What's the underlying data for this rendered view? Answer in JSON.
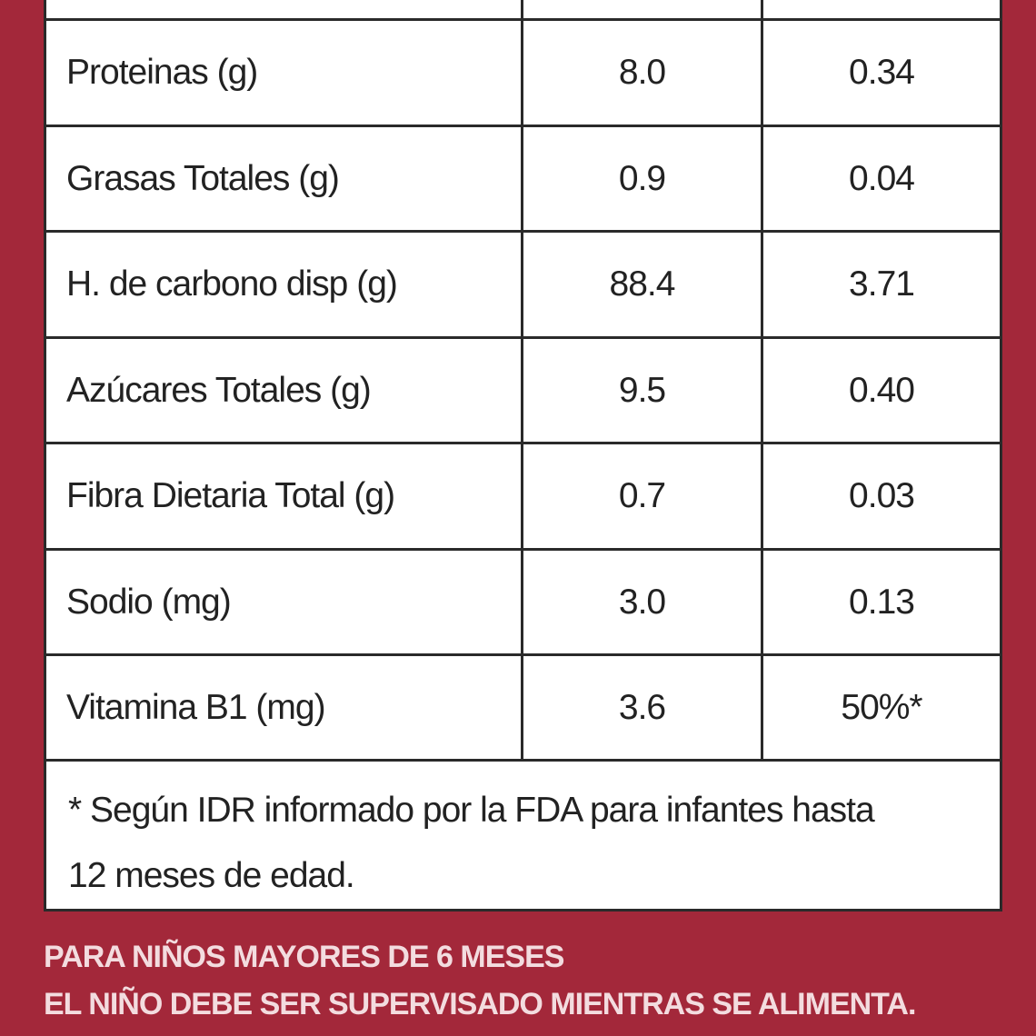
{
  "table": {
    "rows": [
      [
        "Proteinas (g)",
        "8.0",
        "0.34"
      ],
      [
        "Grasas Totales (g)",
        "0.9",
        "0.04"
      ],
      [
        "H. de carbono disp (g)",
        "88.4",
        "3.71"
      ],
      [
        "Azúcares Totales (g)",
        "9.5",
        "0.40"
      ],
      [
        "Fibra Dietaria Total (g)",
        "0.7",
        "0.03"
      ],
      [
        "Sodio (mg)",
        "3.0",
        "0.13"
      ],
      [
        "Vitamina B1 (mg)",
        "3.6",
        "50%*"
      ]
    ],
    "footnote": [
      "* Según IDR informado por la FDA para infantes hasta",
      "12 meses de edad."
    ]
  },
  "warnings": [
    "PARA NIÑOS MAYORES DE 6 MESES",
    "EL NIÑO DEBE SER SUPERVISADO MIENTRAS SE ALIMENTA."
  ]
}
